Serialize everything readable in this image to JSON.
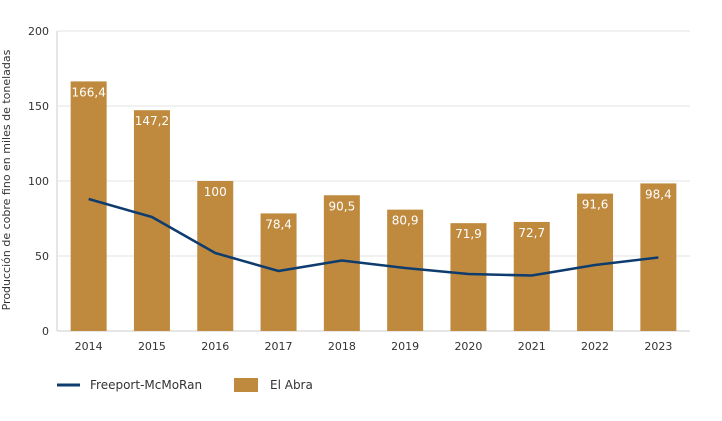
{
  "chart_data": {
    "type": "bar",
    "categories": [
      "2014",
      "2015",
      "2016",
      "2017",
      "2018",
      "2019",
      "2020",
      "2021",
      "2022",
      "2023"
    ],
    "series": [
      {
        "name": "El Abra",
        "type": "bar",
        "values": [
          166.4,
          147.2,
          100,
          78.4,
          90.5,
          80.9,
          71.9,
          72.7,
          91.6,
          98.4
        ],
        "labels": [
          "166,4",
          "147,2",
          "100",
          "78,4",
          "90,5",
          "80,9",
          "71,9",
          "72,7",
          "91,6",
          "98,4"
        ],
        "color": "#BF8A3E"
      },
      {
        "name": "Freeport-McMoRan",
        "type": "line",
        "values": [
          88,
          76,
          52,
          40,
          47,
          42,
          38,
          37,
          44,
          49
        ],
        "color": "#0E3C6E"
      }
    ],
    "ylabel": "Producción de cobre fino en miles de toneladas",
    "xlabel": "",
    "ylim": [
      0,
      200
    ],
    "yticks": [
      "0",
      "50",
      "100",
      "150",
      "200"
    ],
    "grid": true,
    "legend_position": "bottom-left"
  }
}
